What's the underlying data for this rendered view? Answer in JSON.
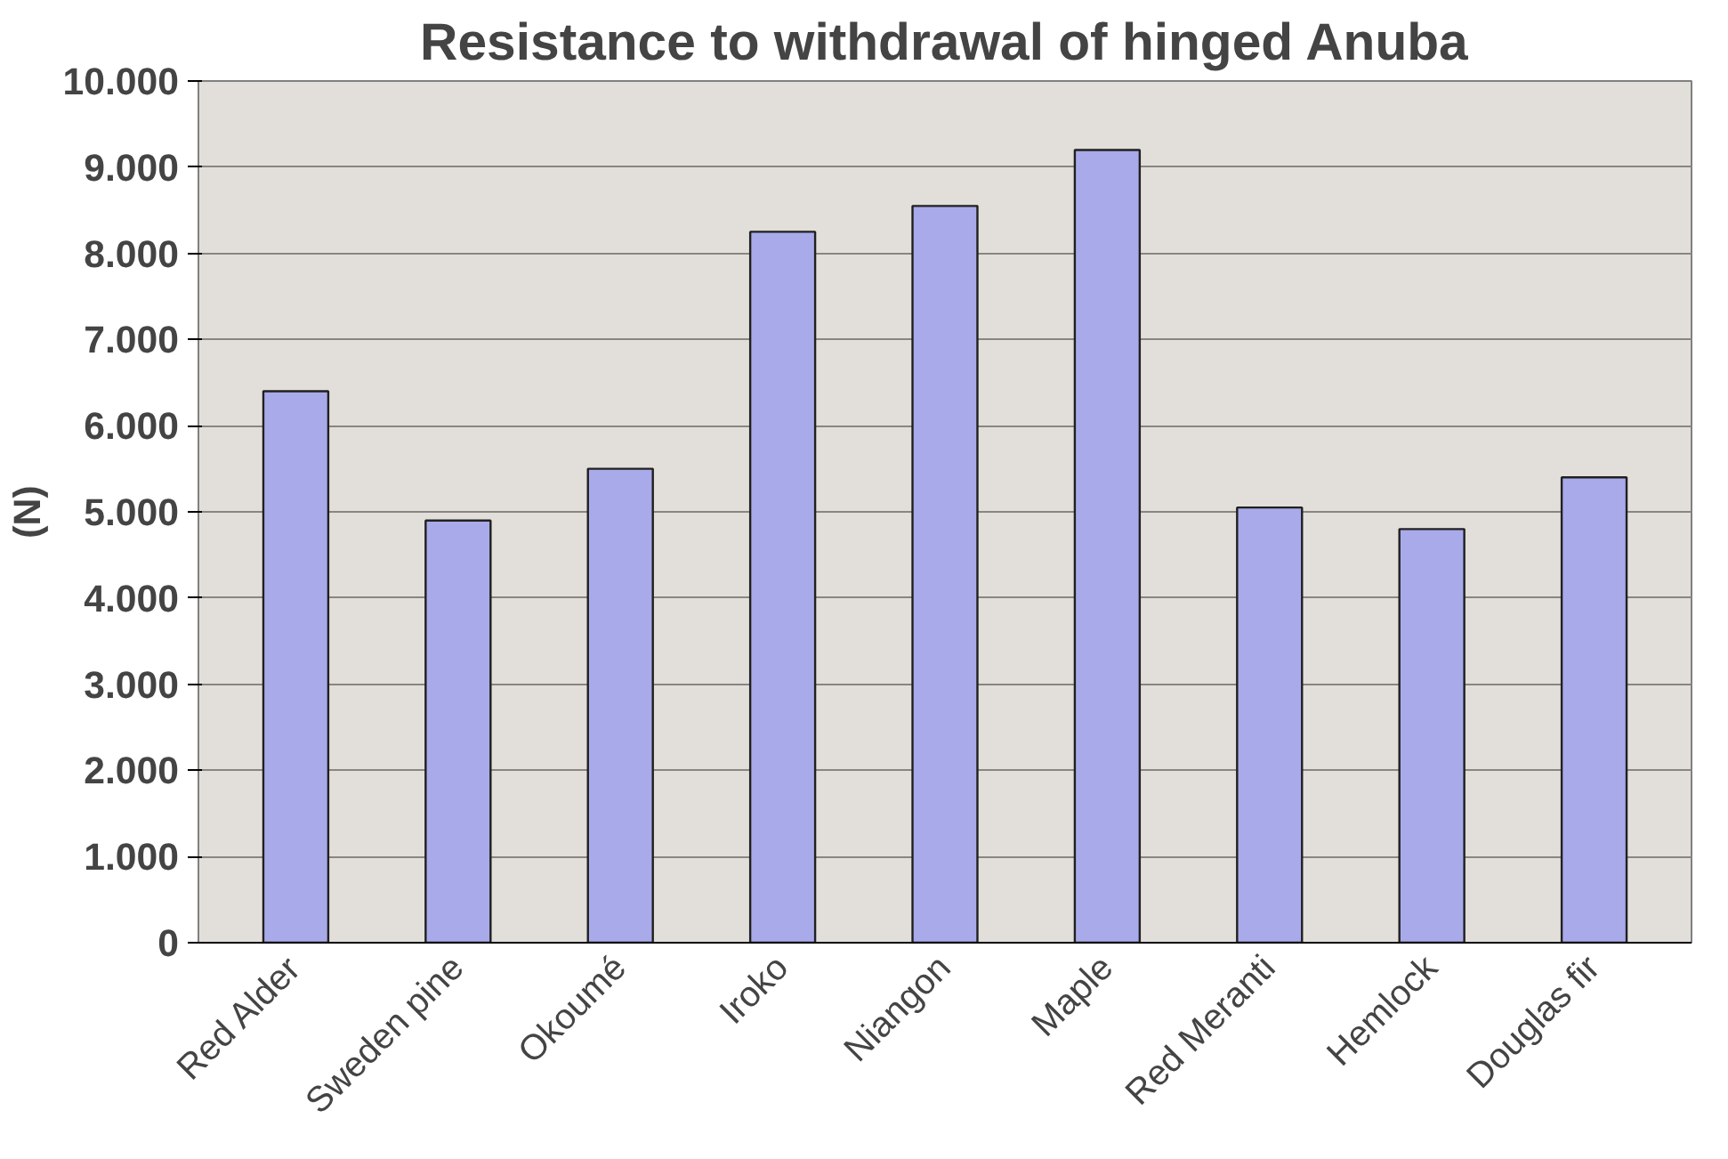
{
  "chart_data": {
    "type": "bar",
    "title": "Resistance to withdrawal of hinged Anuba",
    "ylabel": "(N)",
    "categories": [
      "Red Alder",
      "Sweden pine",
      "Okoumé",
      "Iroko",
      "Niangon",
      "Maple",
      "Red Meranti",
      "Hemlock",
      "Douglas fir"
    ],
    "values": [
      6400,
      4900,
      5500,
      8250,
      8550,
      9200,
      5050,
      4800,
      5400
    ],
    "color": "#a9aaea",
    "ylim": [
      0,
      10000
    ],
    "yticks": [
      0,
      {
        "value": 1000,
        "label": "1.000"
      },
      {
        "value": 2000,
        "label": "2.000"
      },
      {
        "value": 3000,
        "label": "3.000"
      },
      {
        "value": 4000,
        "label": "4.000"
      },
      {
        "value": 5000,
        "label": "5.000"
      },
      {
        "value": 6000,
        "label": "6.000"
      },
      {
        "value": 7000,
        "label": "7.000"
      },
      {
        "value": 8000,
        "label": "8.000"
      },
      {
        "value": 9000,
        "label": "9.000"
      },
      {
        "value": 10000,
        "label": "10.000"
      }
    ],
    "grid": "y"
  }
}
